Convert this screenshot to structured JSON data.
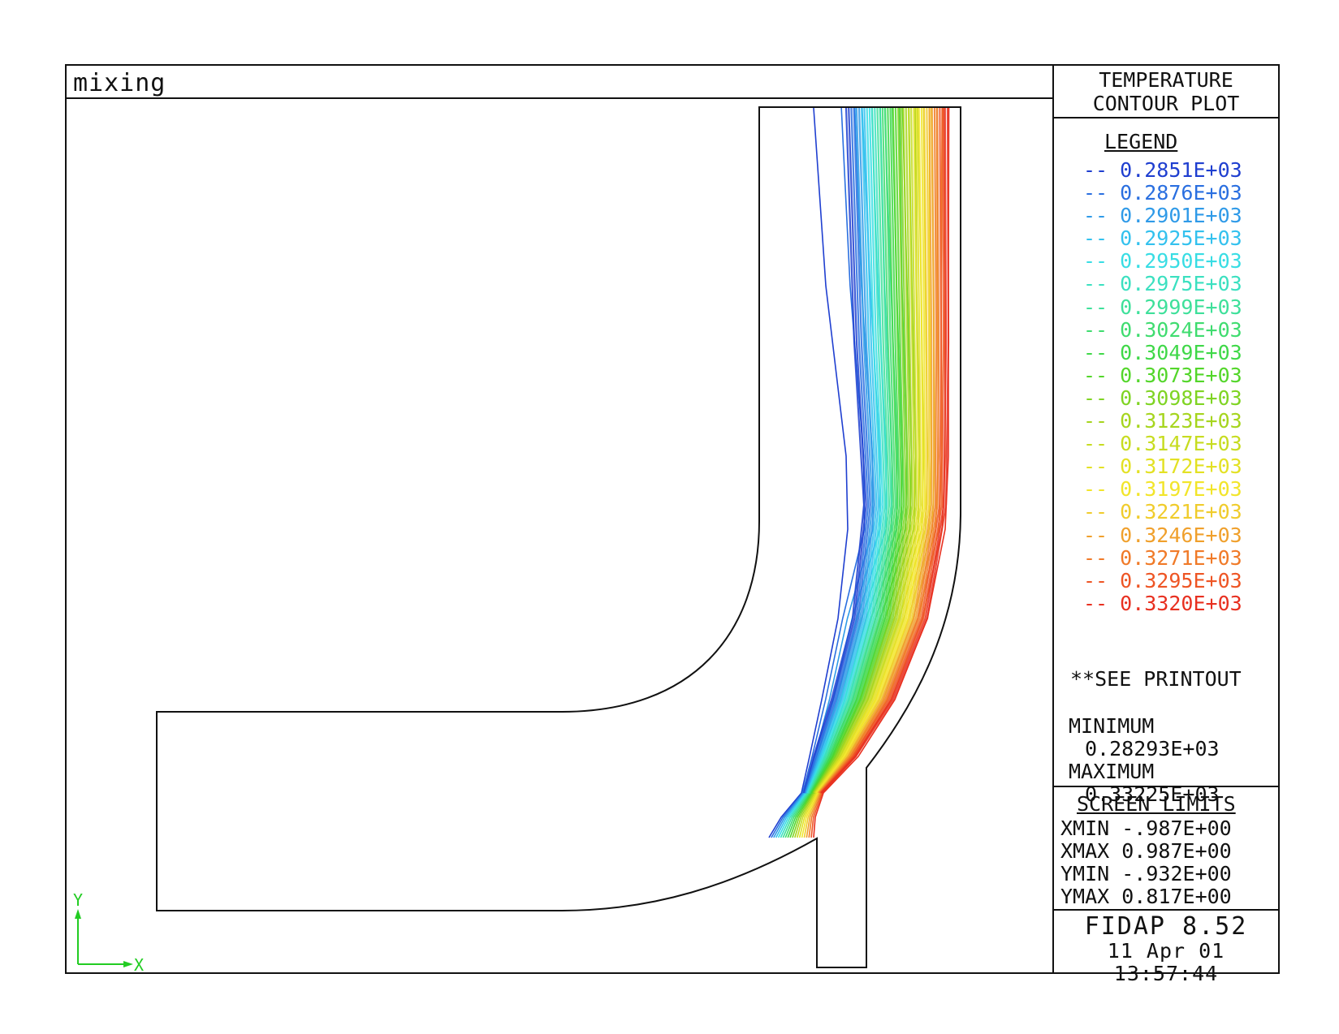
{
  "plot": {
    "title": "mixing"
  },
  "axes_indicator": {
    "y_label": "Y",
    "x_label": "X",
    "color": "#22cc22"
  },
  "side": {
    "heading_line1": "TEMPERATURE",
    "heading_line2": "CONTOUR PLOT",
    "legend_heading": "LEGEND",
    "legend": [
      {
        "label": "-- 0.2851E+03",
        "color": "#1f3fd0"
      },
      {
        "label": "-- 0.2876E+03",
        "color": "#2a6fe0"
      },
      {
        "label": "-- 0.2901E+03",
        "color": "#2f9ae8"
      },
      {
        "label": "-- 0.2925E+03",
        "color": "#33c1ee"
      },
      {
        "label": "-- 0.2950E+03",
        "color": "#38dde4"
      },
      {
        "label": "-- 0.2975E+03",
        "color": "#3be0c0"
      },
      {
        "label": "-- 0.2999E+03",
        "color": "#3ee09a"
      },
      {
        "label": "-- 0.3024E+03",
        "color": "#3fdc6f"
      },
      {
        "label": "-- 0.3049E+03",
        "color": "#3fd848"
      },
      {
        "label": "-- 0.3073E+03",
        "color": "#53d62a"
      },
      {
        "label": "-- 0.3098E+03",
        "color": "#7fd423"
      },
      {
        "label": "-- 0.3123E+03",
        "color": "#a6d51e"
      },
      {
        "label": "-- 0.3147E+03",
        "color": "#c7dc20"
      },
      {
        "label": "-- 0.3172E+03",
        "color": "#e3e124"
      },
      {
        "label": "-- 0.3197E+03",
        "color": "#f2e52a"
      },
      {
        "label": "-- 0.3221E+03",
        "color": "#f0cc2c"
      },
      {
        "label": "-- 0.3246E+03",
        "color": "#f0a02c"
      },
      {
        "label": "-- 0.3271E+03",
        "color": "#f07a28"
      },
      {
        "label": "-- 0.3295E+03",
        "color": "#ee5524"
      },
      {
        "label": "-- 0.3320E+03",
        "color": "#e83020"
      }
    ],
    "see_printout": "**SEE PRINTOUT",
    "minimum_label": "MINIMUM",
    "minimum_value": "0.28293E+03",
    "maximum_label": "MAXIMUM",
    "maximum_value": "0.33225E+03",
    "limits_heading": "SCREEN LIMITS",
    "limits": [
      "XMIN -.987E+00",
      "XMAX 0.987E+00",
      "YMIN -.932E+00",
      "YMAX 0.817E+00"
    ],
    "version_name": "FIDAP 8.52",
    "version_date": "11 Apr 01",
    "version_time": "13:57:44"
  }
}
